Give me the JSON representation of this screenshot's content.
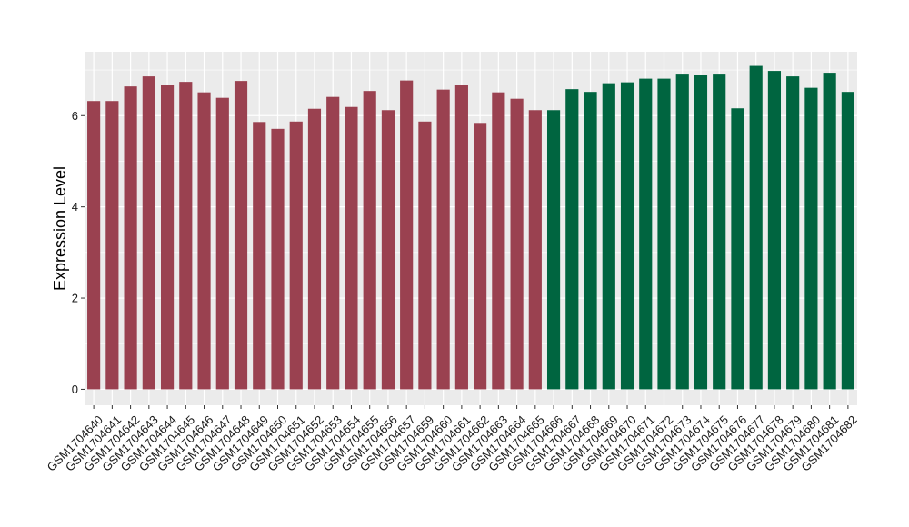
{
  "chart_data": {
    "type": "bar",
    "title": "",
    "xlabel": "",
    "ylabel": "Expression Level",
    "ylim": [
      -0.35,
      7.4
    ],
    "yticks": [
      0,
      2,
      4,
      6
    ],
    "grid": true,
    "legend": "none",
    "colors": {
      "panel": "#ebebeb",
      "grid": "#ffffff",
      "group1": "#9a4150",
      "group2": "#006540"
    },
    "categories": [
      "GSM1704640",
      "GSM1704641",
      "GSM1704642",
      "GSM1704643",
      "GSM1704644",
      "GSM1704645",
      "GSM1704646",
      "GSM1704647",
      "GSM1704648",
      "GSM1704649",
      "GSM1704650",
      "GSM1704651",
      "GSM1704652",
      "GSM1704653",
      "GSM1704654",
      "GSM1704655",
      "GSM1704656",
      "GSM1704657",
      "GSM1704659",
      "GSM1704660",
      "GSM1704661",
      "GSM1704662",
      "GSM1704663",
      "GSM1704664",
      "GSM1704665",
      "GSM1704666",
      "GSM1704667",
      "GSM1704668",
      "GSM1704669",
      "GSM1704670",
      "GSM1704671",
      "GSM1704672",
      "GSM1704673",
      "GSM1704674",
      "GSM1704675",
      "GSM1704676",
      "GSM1704677",
      "GSM1704678",
      "GSM1704679",
      "GSM1704680",
      "GSM1704681",
      "GSM1704682"
    ],
    "values": [
      6.32,
      6.32,
      6.64,
      6.86,
      6.68,
      6.74,
      6.51,
      6.39,
      6.76,
      5.86,
      5.71,
      5.87,
      6.15,
      6.41,
      6.19,
      6.54,
      6.12,
      6.77,
      5.87,
      6.57,
      6.67,
      5.84,
      6.51,
      6.37,
      6.12,
      6.12,
      6.58,
      6.52,
      6.71,
      6.73,
      6.81,
      6.81,
      6.92,
      6.89,
      6.92,
      6.16,
      7.09,
      6.98,
      6.86,
      6.61,
      6.94,
      6.52
    ],
    "groups": [
      1,
      1,
      1,
      1,
      1,
      1,
      1,
      1,
      1,
      1,
      1,
      1,
      1,
      1,
      1,
      1,
      1,
      1,
      1,
      1,
      1,
      1,
      1,
      1,
      1,
      2,
      2,
      2,
      2,
      2,
      2,
      2,
      2,
      2,
      2,
      2,
      2,
      2,
      2,
      2,
      2,
      2
    ]
  }
}
